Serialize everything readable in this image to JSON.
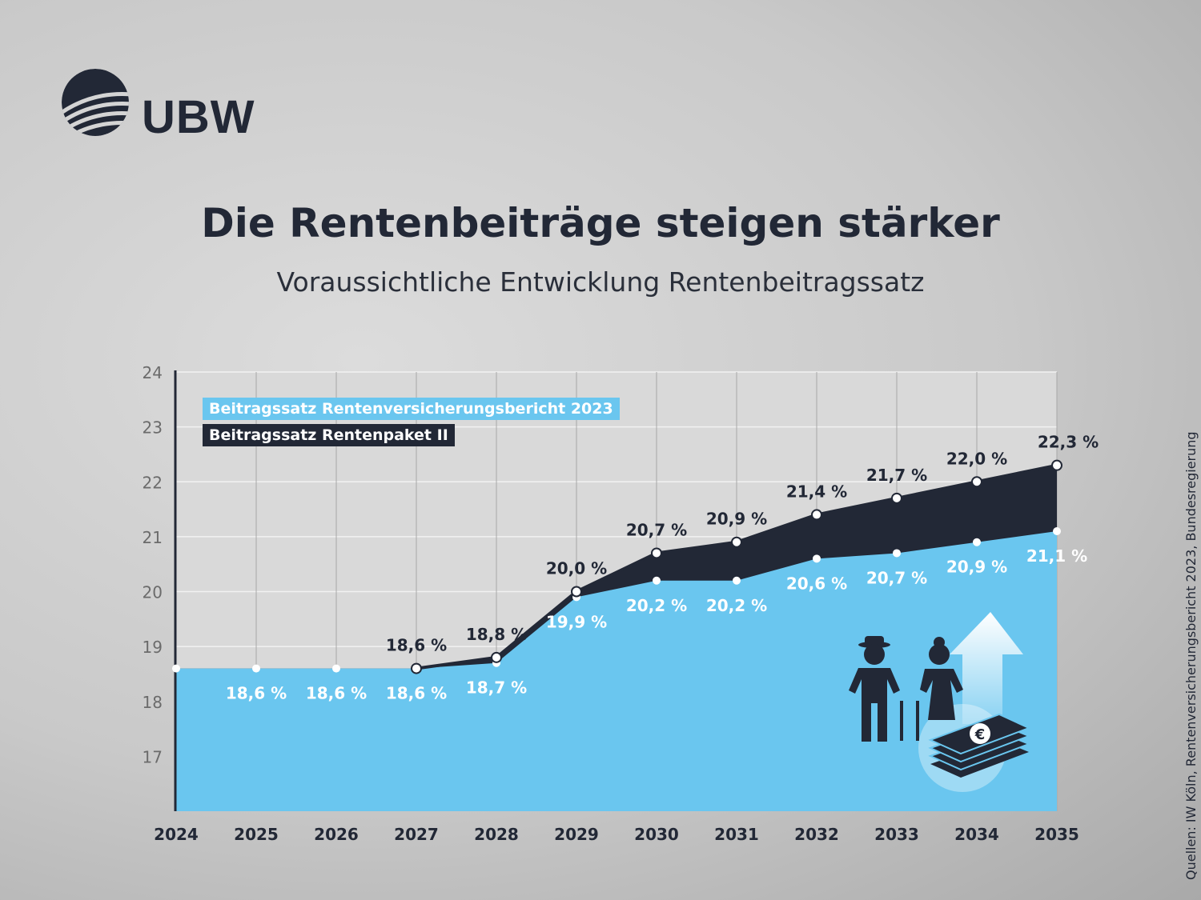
{
  "logo": {
    "text": "UBW"
  },
  "title": "Die Rentenbeiträge steigen stärker",
  "subtitle": "Voraussichtliche Entwicklung Rentenbeitragssatz",
  "source": "Quellen: IW Köln, Rentenversicherungsbericht 2023, Bundesregierung",
  "colors": {
    "blue": "#6ac6ef",
    "dark": "#222836",
    "plot_bg": "#d9d9d9"
  },
  "chart_data": {
    "type": "area",
    "title": "Die Rentenbeiträge steigen stärker",
    "subtitle": "Voraussichtliche Entwicklung Rentenbeitragssatz",
    "xlabel": "",
    "ylabel": "",
    "x": [
      2024,
      2025,
      2026,
      2027,
      2028,
      2029,
      2030,
      2031,
      2032,
      2033,
      2034,
      2035
    ],
    "x_tick_labels": [
      "2024",
      "2025",
      "2026",
      "2027",
      "2028",
      "2029",
      "2030",
      "2031",
      "2032",
      "2033",
      "2034",
      "2035"
    ],
    "y_ticks": [
      "17",
      "18",
      "19",
      "20",
      "21",
      "22",
      "23",
      "24"
    ],
    "ylim": [
      16,
      24
    ],
    "grid": true,
    "legend_position": "top-left",
    "series": [
      {
        "name": "Beitragssatz Rentenversicherungsbericht 2023",
        "color": "#6ac6ef",
        "values": [
          18.6,
          18.6,
          18.6,
          18.6,
          18.7,
          19.9,
          20.2,
          20.2,
          20.6,
          20.7,
          20.9,
          21.1
        ],
        "labels": [
          null,
          "18,6 %",
          "18,6 %",
          "18,6 %",
          "18,7 %",
          "19,9 %",
          "20,2 %",
          "20,2 %",
          "20,6 %",
          "20,7 %",
          "20,9 %",
          "21,1 %"
        ]
      },
      {
        "name": "Beitragssatz Rentenpaket II",
        "color": "#222836",
        "values": [
          18.6,
          18.6,
          18.6,
          18.6,
          18.8,
          20.0,
          20.7,
          20.9,
          21.4,
          21.7,
          22.0,
          22.3
        ],
        "labels": [
          null,
          null,
          null,
          "18,6 %",
          "18,8 %",
          "20,0 %",
          "20,7 %",
          "20,9 %",
          "21,4 %",
          "21,7 %",
          "22,0 %",
          "22,3 %"
        ]
      }
    ]
  }
}
